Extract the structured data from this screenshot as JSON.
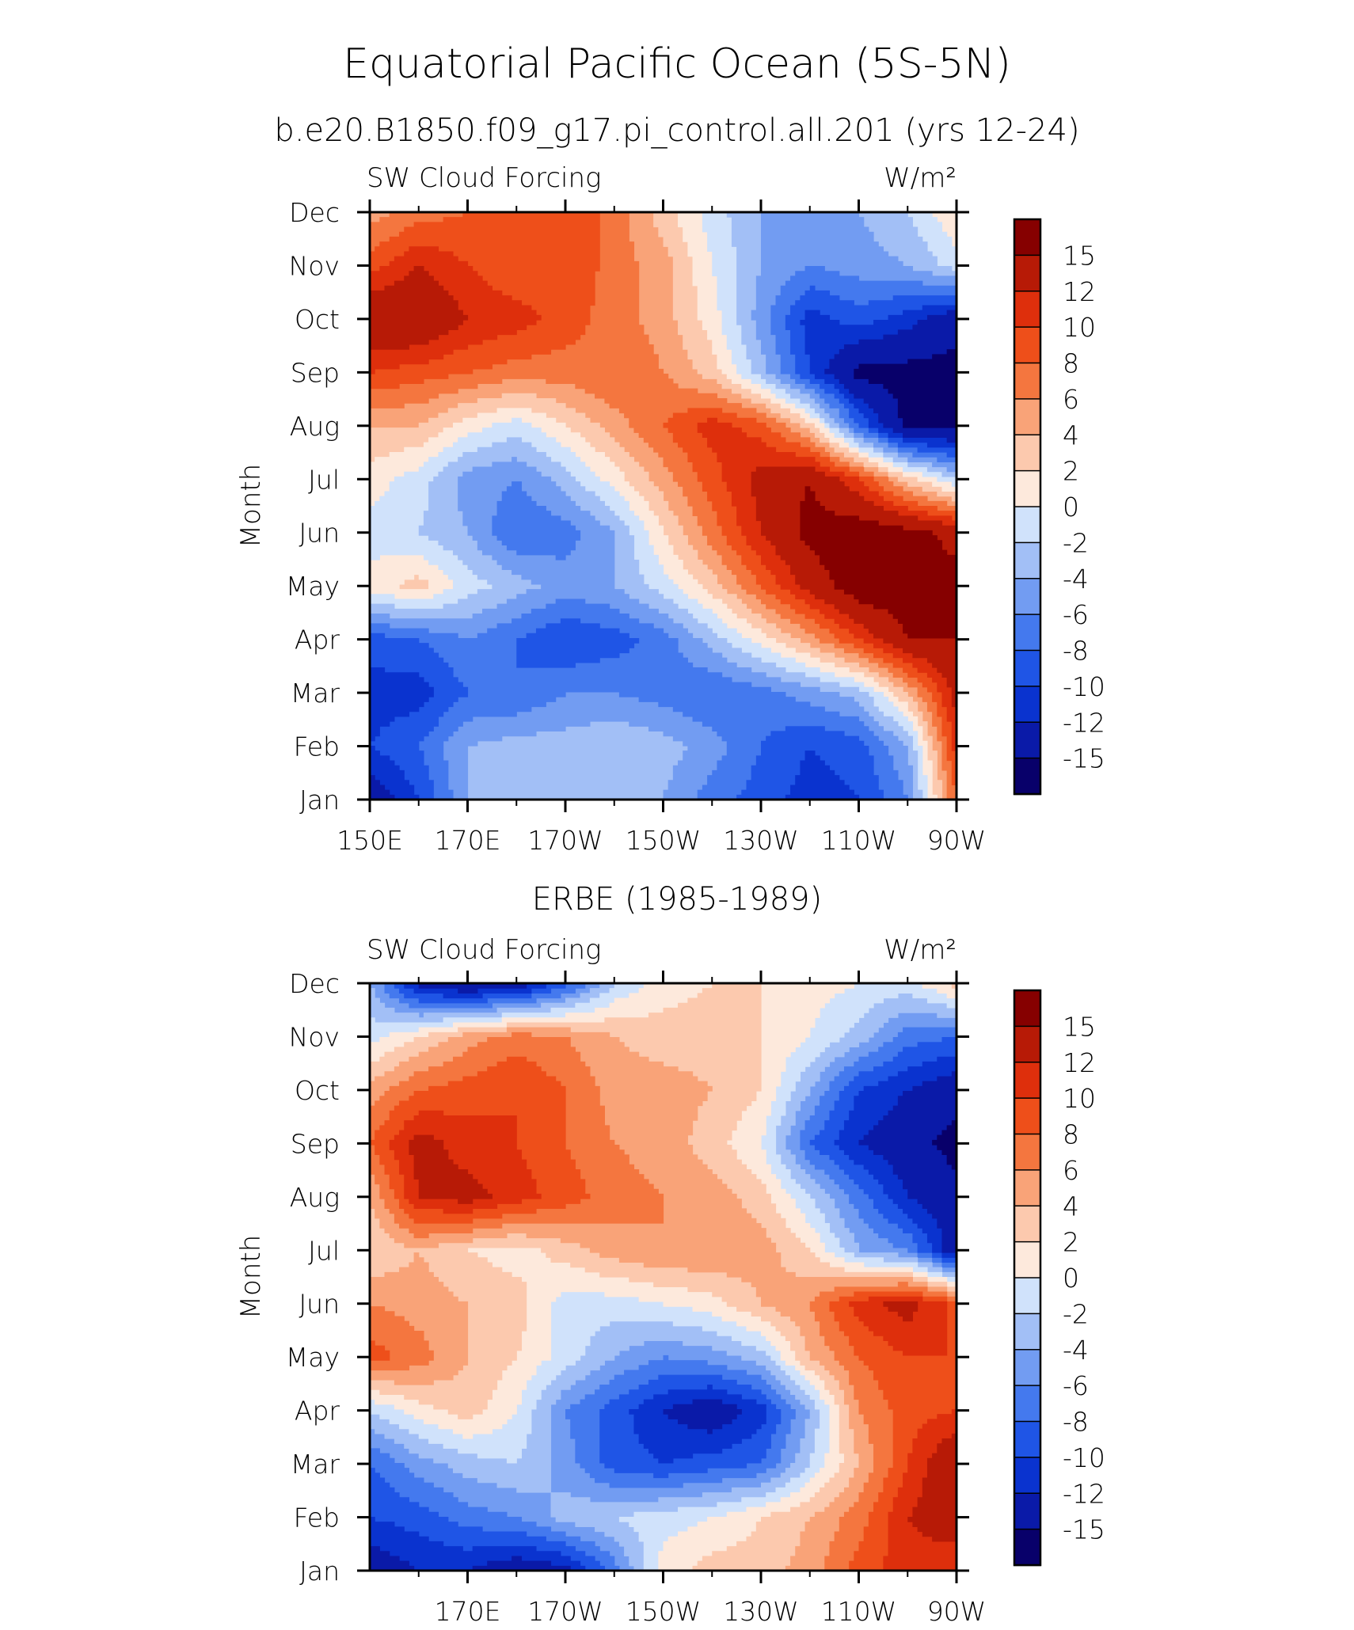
{
  "figure": {
    "title": "Equatorial Pacific Ocean (5S-5N)"
  },
  "chart_data": [
    {
      "type": "heatmap",
      "subtitle": "b.e20.B1850.f09_g17.pi_control.all.201 (yrs 12-24)",
      "left_string": "SW Cloud Forcing",
      "right_string": "W/m²",
      "ylabel": "Month",
      "x_ticks": [
        "150E",
        "170E",
        "170W",
        "150W",
        "130W",
        "110W",
        "90W"
      ],
      "x_tick_lon": [
        150,
        170,
        190,
        210,
        230,
        250,
        270
      ],
      "xlim": [
        150,
        270
      ],
      "y_ticks": [
        "Jan",
        "Feb",
        "Mar",
        "Apr",
        "May",
        "Jun",
        "Jul",
        "Aug",
        "Sep",
        "Oct",
        "Nov",
        "Dec"
      ],
      "ylim": [
        1,
        12
      ],
      "colorbar": {
        "levels": [
          -15,
          -12,
          -10,
          -8,
          -6,
          -4,
          -2,
          0,
          2,
          4,
          6,
          8,
          10,
          12,
          15
        ],
        "labels": [
          "15",
          "12",
          "10",
          "8",
          "6",
          "4",
          "2",
          "0",
          "-2",
          "-4",
          "-6",
          "-8",
          "-10",
          "-12",
          "-15"
        ],
        "colors": [
          "#08006a",
          "#0a1aa8",
          "#0a33cf",
          "#1f55e6",
          "#4479ee",
          "#729cf2",
          "#a2bff6",
          "#d0e2fb",
          "#fde9dc",
          "#fcc9ae",
          "#f9a378",
          "#f4763f",
          "#ee4f1a",
          "#de2f0c",
          "#b71a06",
          "#860000"
        ]
      },
      "lons": [
        150,
        160,
        170,
        180,
        190,
        200,
        210,
        220,
        230,
        240,
        250,
        260,
        270
      ],
      "months": [
        1,
        2,
        3,
        4,
        5,
        6,
        7,
        8,
        9,
        10,
        11,
        12
      ],
      "values": [
        [
          -14,
          -10,
          -4,
          -3,
          -4,
          -3,
          -4,
          -7,
          -9,
          -11,
          -10,
          -6,
          8
        ],
        [
          -10,
          -8,
          -4,
          -3,
          -3,
          -2,
          -3,
          -5,
          -8,
          -10,
          -9,
          -4,
          11
        ],
        [
          -11,
          -11,
          -8,
          -8,
          -6,
          -6,
          -7,
          -8,
          -7,
          -5,
          -3,
          4,
          13
        ],
        [
          -9,
          -8,
          -6,
          -8,
          -10,
          -9,
          -7,
          -3,
          1,
          5,
          10,
          15,
          15
        ],
        [
          1,
          3,
          -1,
          -3,
          -5,
          -4,
          -1,
          3,
          8,
          13,
          17,
          17,
          16
        ],
        [
          -1,
          -2,
          -4,
          -8,
          -7,
          -4,
          2,
          7,
          12,
          16,
          17,
          16,
          14
        ],
        [
          1,
          -1,
          -5,
          -6,
          -3,
          1,
          5,
          9,
          13,
          15,
          10,
          3,
          -2
        ],
        [
          4,
          4,
          1,
          -1,
          2,
          5,
          8,
          11,
          9,
          3,
          -8,
          -16,
          -16
        ],
        [
          10,
          9,
          8,
          7,
          7,
          8,
          6,
          3,
          -3,
          -10,
          -16,
          -16,
          -16
        ],
        [
          15,
          15,
          12,
          11,
          9,
          7,
          5,
          1,
          -5,
          -11,
          -9,
          -11,
          -14
        ],
        [
          9,
          12,
          10,
          8,
          10,
          7,
          5,
          0,
          -4,
          -6,
          -5,
          -4,
          -1
        ],
        [
          5,
          7,
          8,
          9,
          10,
          7,
          3,
          -1,
          -4,
          -6,
          -4,
          -2,
          2
        ]
      ]
    },
    {
      "type": "heatmap",
      "subtitle": "ERBE (1985-1989)",
      "left_string": "SW Cloud Forcing",
      "right_string": "W/m²",
      "ylabel": "Month",
      "x_ticks": [
        "170E",
        "170W",
        "150W",
        "130W",
        "110W",
        "90W"
      ],
      "x_tick_lon": [
        170,
        190,
        210,
        230,
        250,
        270
      ],
      "xlim": [
        150,
        270
      ],
      "y_ticks": [
        "Jan",
        "Feb",
        "Mar",
        "Apr",
        "May",
        "Jun",
        "Jul",
        "Aug",
        "Sep",
        "Oct",
        "Nov",
        "Dec"
      ],
      "ylim": [
        1,
        12
      ],
      "colorbar": {
        "levels": [
          -15,
          -12,
          -10,
          -8,
          -6,
          -4,
          -2,
          0,
          2,
          4,
          6,
          8,
          10,
          12,
          15
        ],
        "labels": [
          "15",
          "12",
          "10",
          "8",
          "6",
          "4",
          "2",
          "0",
          "-2",
          "-4",
          "-6",
          "-8",
          "-10",
          "-12",
          "-15"
        ],
        "colors": [
          "#08006a",
          "#0a1aa8",
          "#0a33cf",
          "#1f55e6",
          "#4479ee",
          "#729cf2",
          "#a2bff6",
          "#d0e2fb",
          "#fde9dc",
          "#fcc9ae",
          "#f9a378",
          "#f4763f",
          "#ee4f1a",
          "#de2f0c",
          "#b71a06",
          "#860000"
        ]
      },
      "lons": [
        150,
        160,
        170,
        180,
        190,
        200,
        210,
        220,
        230,
        240,
        250,
        260,
        270
      ],
      "months": [
        1,
        2,
        3,
        4,
        5,
        6,
        7,
        8,
        9,
        10,
        11,
        12
      ],
      "values": [
        [
          -14,
          -12,
          -12,
          -14,
          -13,
          -7,
          1,
          3,
          3,
          5,
          9,
          11,
          10
        ],
        [
          -10,
          -9,
          -7,
          -6,
          -3,
          -2,
          -1,
          0,
          2,
          4,
          7,
          12,
          14
        ],
        [
          -8,
          -5,
          -3,
          -2,
          -5,
          -9,
          -10,
          -9,
          -8,
          -2,
          4,
          10,
          15
        ],
        [
          -2,
          1,
          3,
          0,
          -6,
          -9,
          -12,
          -14,
          -11,
          -4,
          6,
          9,
          10
        ],
        [
          9,
          7,
          4,
          2,
          -1,
          -4,
          -6,
          -5,
          -3,
          4,
          8,
          10,
          10
        ],
        [
          6,
          5,
          4,
          3,
          -1,
          -1,
          0,
          1,
          4,
          6,
          11,
          13,
          9
        ],
        [
          2,
          4,
          2,
          1,
          3,
          5,
          6,
          6,
          5,
          2,
          -4,
          -6,
          -14
        ],
        [
          4,
          12,
          13,
          11,
          9,
          7,
          6,
          5,
          3,
          -2,
          -7,
          -12,
          -14
        ],
        [
          8,
          13,
          11,
          10,
          8,
          6,
          5,
          3,
          0,
          -8,
          -12,
          -14,
          -16
        ],
        [
          5,
          8,
          9,
          10,
          8,
          5,
          5,
          4,
          2,
          -4,
          -10,
          -12,
          -14
        ],
        [
          -1,
          2,
          5,
          7,
          6,
          4,
          3,
          3,
          2,
          0,
          -3,
          -7,
          -8
        ],
        [
          -4,
          -13,
          -15,
          -14,
          -9,
          -2,
          1,
          2,
          2,
          1,
          0,
          -1,
          3
        ]
      ]
    }
  ]
}
